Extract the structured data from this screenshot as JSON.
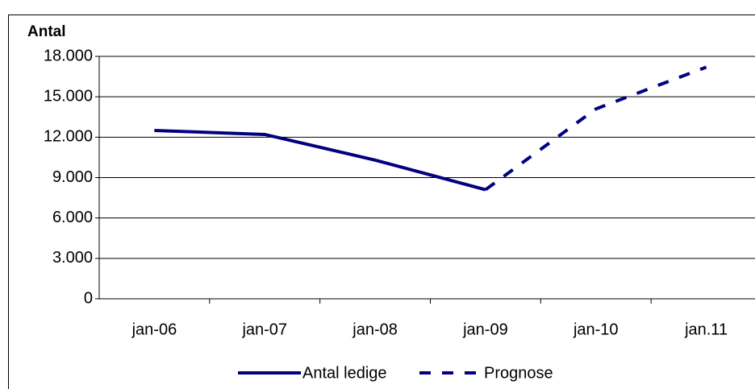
{
  "chart_data": {
    "type": "line",
    "y_label": "Antal",
    "categories": [
      "jan-06",
      "jan-07",
      "jan-08",
      "jan-09",
      "jan-10",
      "jan.11"
    ],
    "series": [
      {
        "name": "Antal ledige",
        "color": "#000080",
        "dashed": false,
        "values": [
          12500,
          12200,
          10300,
          8100,
          null,
          null
        ]
      },
      {
        "name": "Prognose",
        "color": "#000080",
        "dashed": true,
        "values": [
          null,
          null,
          null,
          8100,
          14100,
          17200
        ]
      }
    ],
    "ylim": [
      0,
      18000
    ],
    "yticks": [
      0,
      {
        "value": 3000,
        "label": "3.000"
      },
      {
        "value": 6000,
        "label": "6.000"
      },
      {
        "value": 9000,
        "label": "9.000"
      },
      {
        "value": 12000,
        "label": "12.000"
      },
      {
        "value": 15000,
        "label": "15.000"
      },
      {
        "value": 18000,
        "label": "18.000"
      }
    ],
    "grid": true
  }
}
